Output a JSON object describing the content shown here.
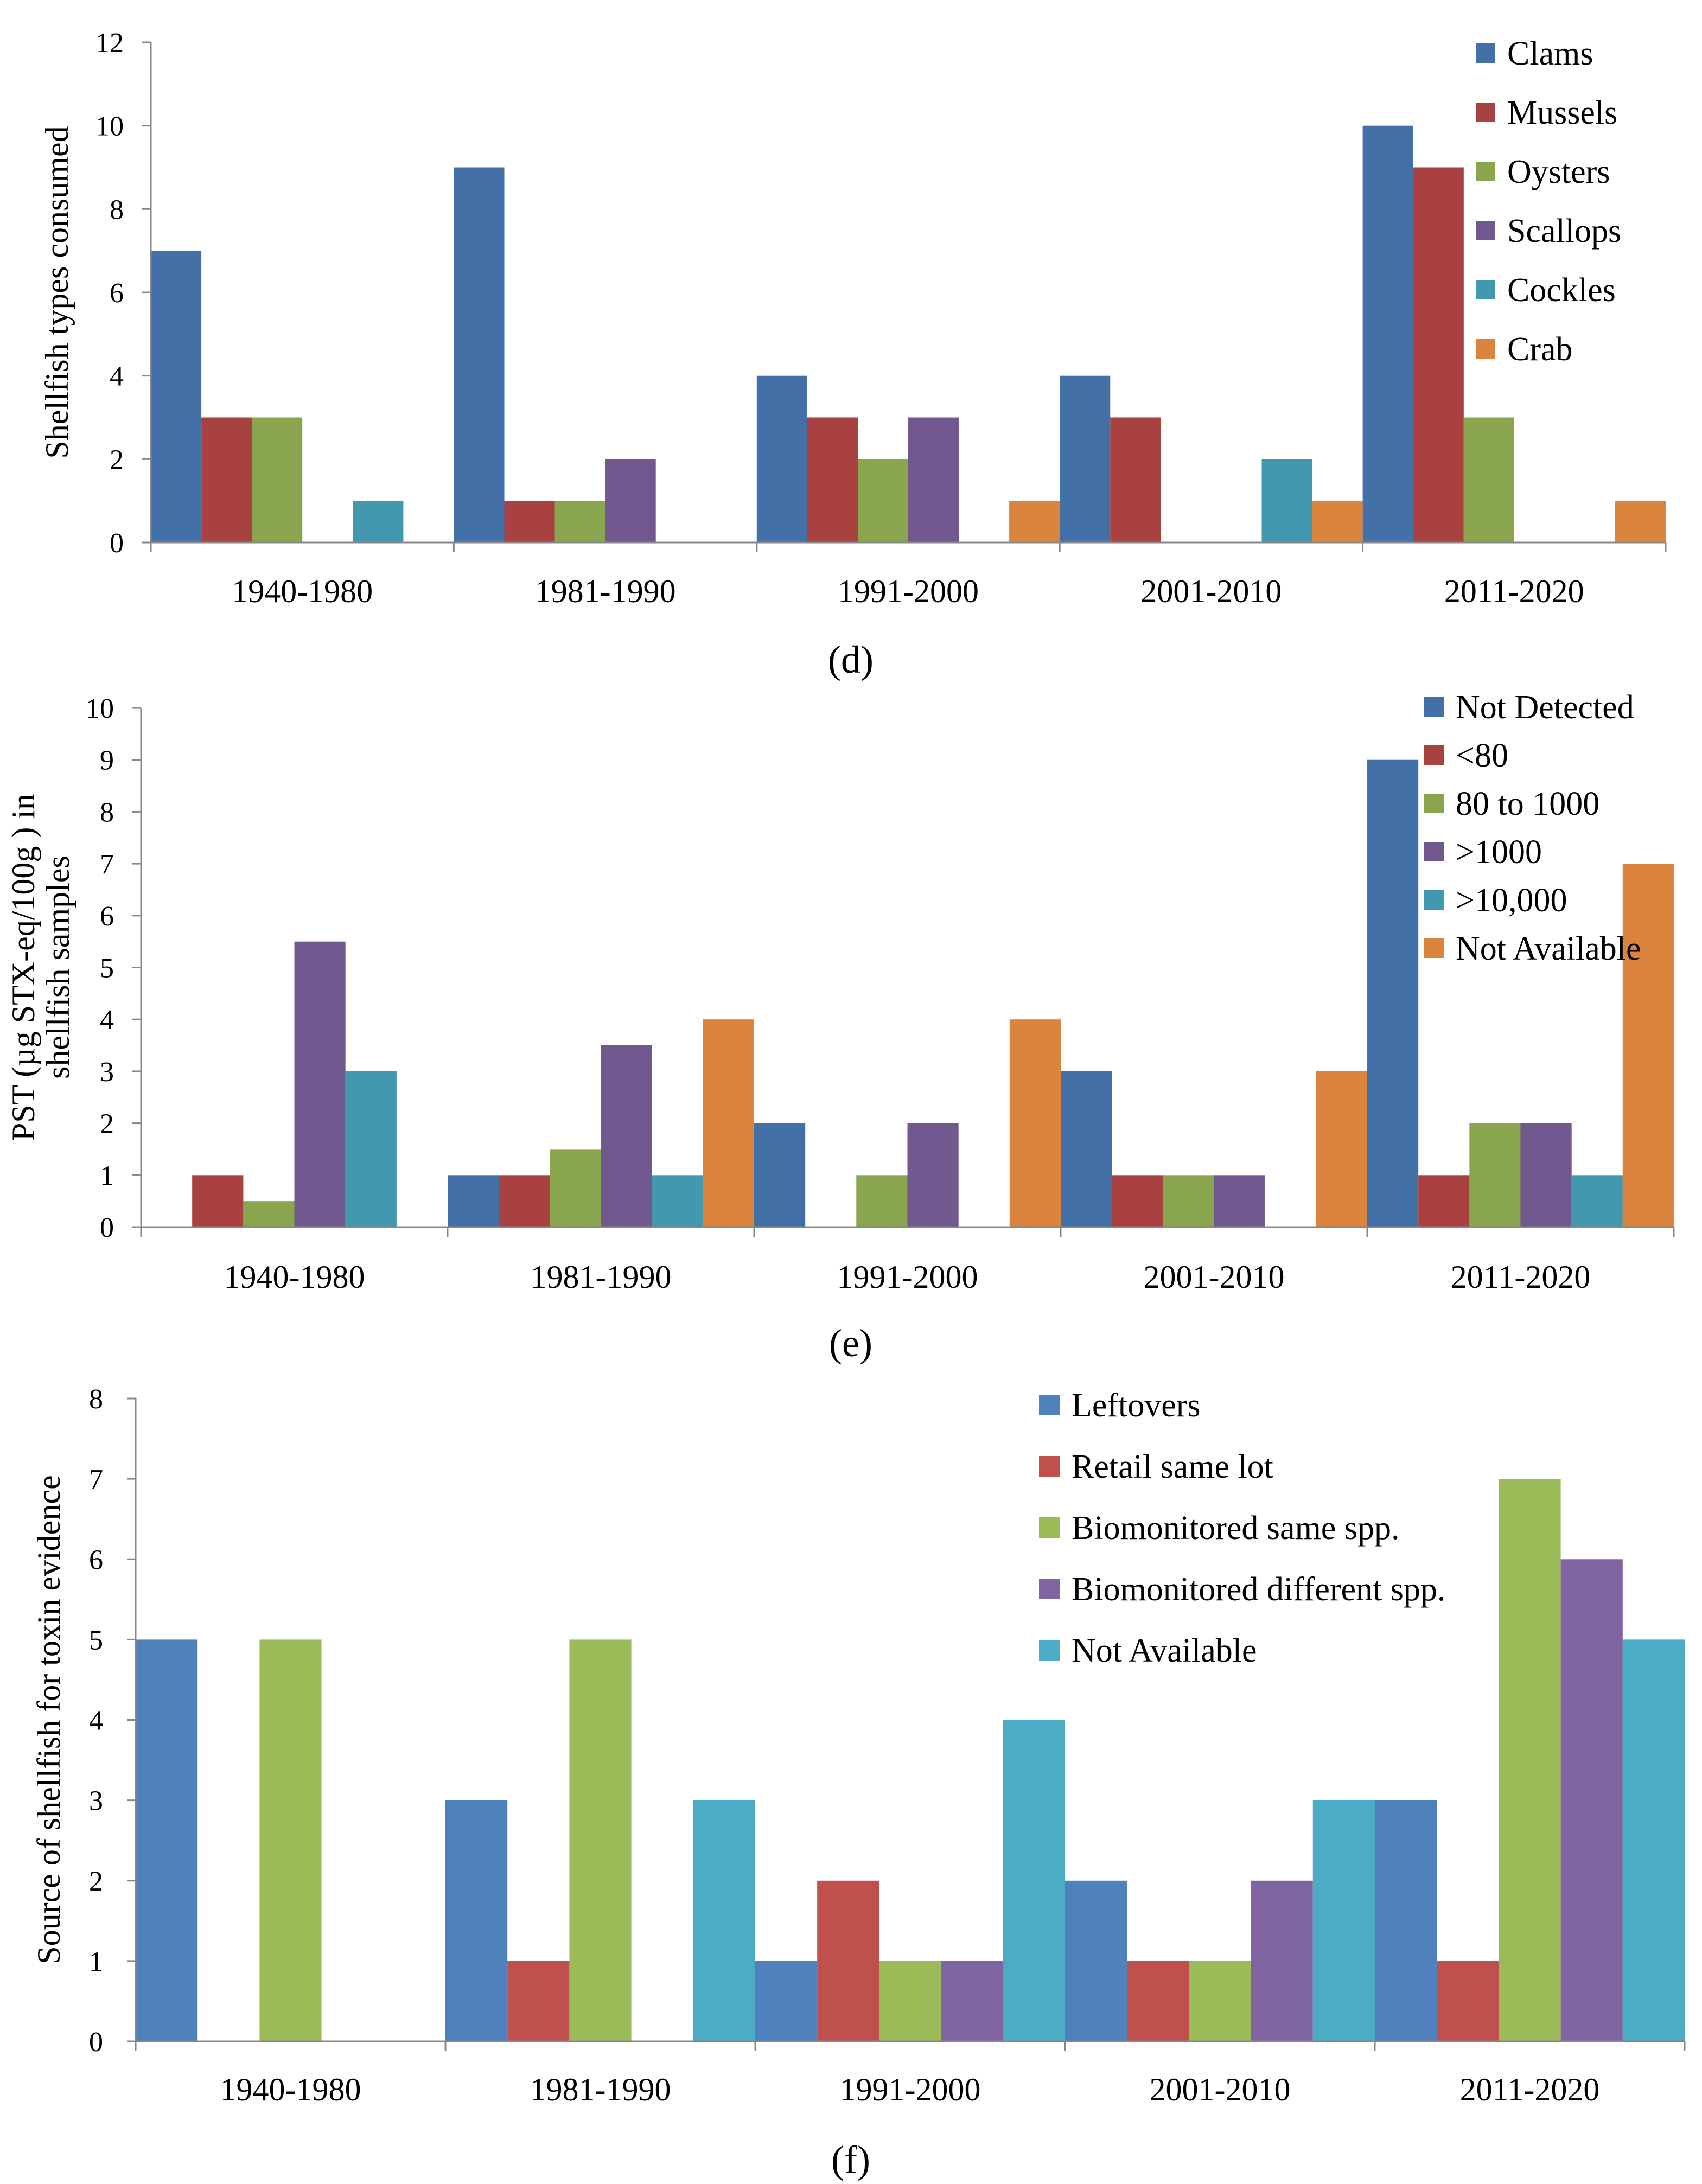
{
  "chart_data": [
    {
      "type": "bar",
      "panel": "d",
      "ylabel": "Shellfish types consumed",
      "xlabel": "",
      "ylim": [
        0,
        12
      ],
      "yticks": [
        0,
        2,
        4,
        6,
        8,
        10,
        12
      ],
      "legend_position": "top-right",
      "categories": [
        "1940-1980",
        "1981-1990",
        "1991-2000",
        "2001-2010",
        "2011-2020"
      ],
      "series": [
        {
          "name": "Clams",
          "color": "#4470A8",
          "values": [
            7,
            9,
            4,
            4,
            10
          ]
        },
        {
          "name": "Mussels",
          "color": "#A8413F",
          "values": [
            3,
            1,
            3,
            3,
            9
          ]
        },
        {
          "name": "Oysters",
          "color": "#89A54E",
          "values": [
            3,
            1,
            2,
            0,
            3
          ]
        },
        {
          "name": "Scallops",
          "color": "#71588F",
          "values": [
            0,
            2,
            3,
            0,
            0
          ]
        },
        {
          "name": "Cockles",
          "color": "#4198AF",
          "values": [
            1,
            0,
            0,
            2,
            0
          ]
        },
        {
          "name": "Crab",
          "color": "#DB843D",
          "values": [
            0,
            0,
            1,
            1,
            1
          ]
        }
      ]
    },
    {
      "type": "bar",
      "panel": "e",
      "ylabel": "PST (µg STX-eq/100g ) in shellfish samples",
      "ylabel_lines": [
        "PST (µg STX-eq/100g ) in",
        "shellfish samples"
      ],
      "xlabel": "",
      "ylim": [
        0,
        10
      ],
      "yticks": [
        0,
        1,
        2,
        3,
        4,
        5,
        6,
        7,
        8,
        9,
        10
      ],
      "legend_position": "top-right",
      "categories": [
        "1940-1980",
        "1981-1990",
        "1991-2000",
        "2001-2010",
        "2011-2020"
      ],
      "series": [
        {
          "name": "Not Detected",
          "color": "#4470A8",
          "values": [
            0,
            1,
            2,
            3,
            9
          ]
        },
        {
          "name": "<80",
          "color": "#A8413F",
          "values": [
            1,
            1,
            0,
            1,
            1
          ]
        },
        {
          "name": "80 to 1000",
          "color": "#89A54E",
          "values": [
            0.5,
            1.5,
            1,
            1,
            2
          ]
        },
        {
          "name": ">1000",
          "color": "#71588F",
          "values": [
            5.5,
            3.5,
            2,
            1,
            2
          ]
        },
        {
          "name": ">10,000",
          "color": "#4198AF",
          "values": [
            3,
            1,
            0,
            0,
            1
          ]
        },
        {
          "name": "Not Available",
          "color": "#DB843D",
          "values": [
            0,
            4,
            4,
            3,
            7
          ]
        }
      ]
    },
    {
      "type": "bar",
      "panel": "f",
      "ylabel": "Source of shellfish for toxin evidence",
      "xlabel": "",
      "ylim": [
        0,
        8
      ],
      "yticks": [
        0,
        1,
        2,
        3,
        4,
        5,
        6,
        7,
        8
      ],
      "legend_position": "top-right",
      "categories": [
        "1940-1980",
        "1981-1990",
        "1991-2000",
        "2001-2010",
        "2011-2020"
      ],
      "series": [
        {
          "name": "Leftovers",
          "color": "#4F81BD",
          "values": [
            5,
            3,
            1,
            2,
            3
          ]
        },
        {
          "name": "Retail same lot",
          "color": "#C0504D",
          "values": [
            0,
            1,
            2,
            1,
            1
          ]
        },
        {
          "name": "Biomonitored same spp.",
          "color": "#9BBB59",
          "values": [
            5,
            5,
            1,
            1,
            7
          ]
        },
        {
          "name": "Biomonitored different spp.",
          "color": "#8064A2",
          "values": [
            0,
            0,
            1,
            2,
            6
          ]
        },
        {
          "name": "Not Available",
          "color": "#4BACC6",
          "values": [
            0,
            3,
            4,
            3,
            5
          ]
        }
      ]
    }
  ],
  "panel_labels": [
    "(d)",
    "(e)",
    "(f)"
  ]
}
